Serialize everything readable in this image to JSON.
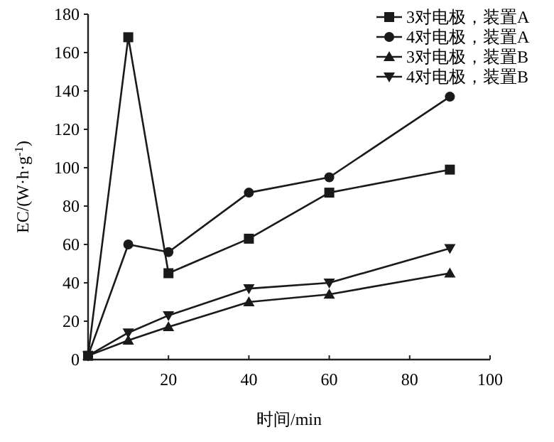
{
  "chart_data": {
    "type": "line",
    "xlabel": "时间/min",
    "ylabel": "EC/(W·h·g$^{-1}$)",
    "x": [
      0,
      10,
      20,
      40,
      60,
      90
    ],
    "xlim": [
      0,
      100
    ],
    "xticks": [
      {
        "value": 0,
        "label": null
      },
      20,
      40,
      60,
      80,
      100
    ],
    "ylim": [
      0,
      180
    ],
    "yticks": [
      0,
      20,
      40,
      60,
      80,
      100,
      120,
      140,
      160,
      180
    ],
    "grid": false,
    "legend": "top right",
    "line_style": "solid",
    "series": [
      {
        "name": "3对电极，装置A",
        "color": "#1a1a1a",
        "marker": "square",
        "values": [
          2,
          168,
          45,
          63,
          87,
          99
        ]
      },
      {
        "name": "4对电极，装置A",
        "color": "#1a1a1a",
        "marker": "circle",
        "values": [
          2,
          60,
          56,
          87,
          95,
          137
        ]
      },
      {
        "name": "3对电极，装置B",
        "color": "#1a1a1a",
        "marker": "triangle",
        "values": [
          2,
          10,
          17,
          30,
          34,
          45
        ]
      },
      {
        "name": "4对电极，装置B",
        "color": "#1a1a1a",
        "marker": "triangle-down",
        "values": [
          2,
          14,
          23,
          37,
          40,
          58
        ]
      }
    ]
  }
}
